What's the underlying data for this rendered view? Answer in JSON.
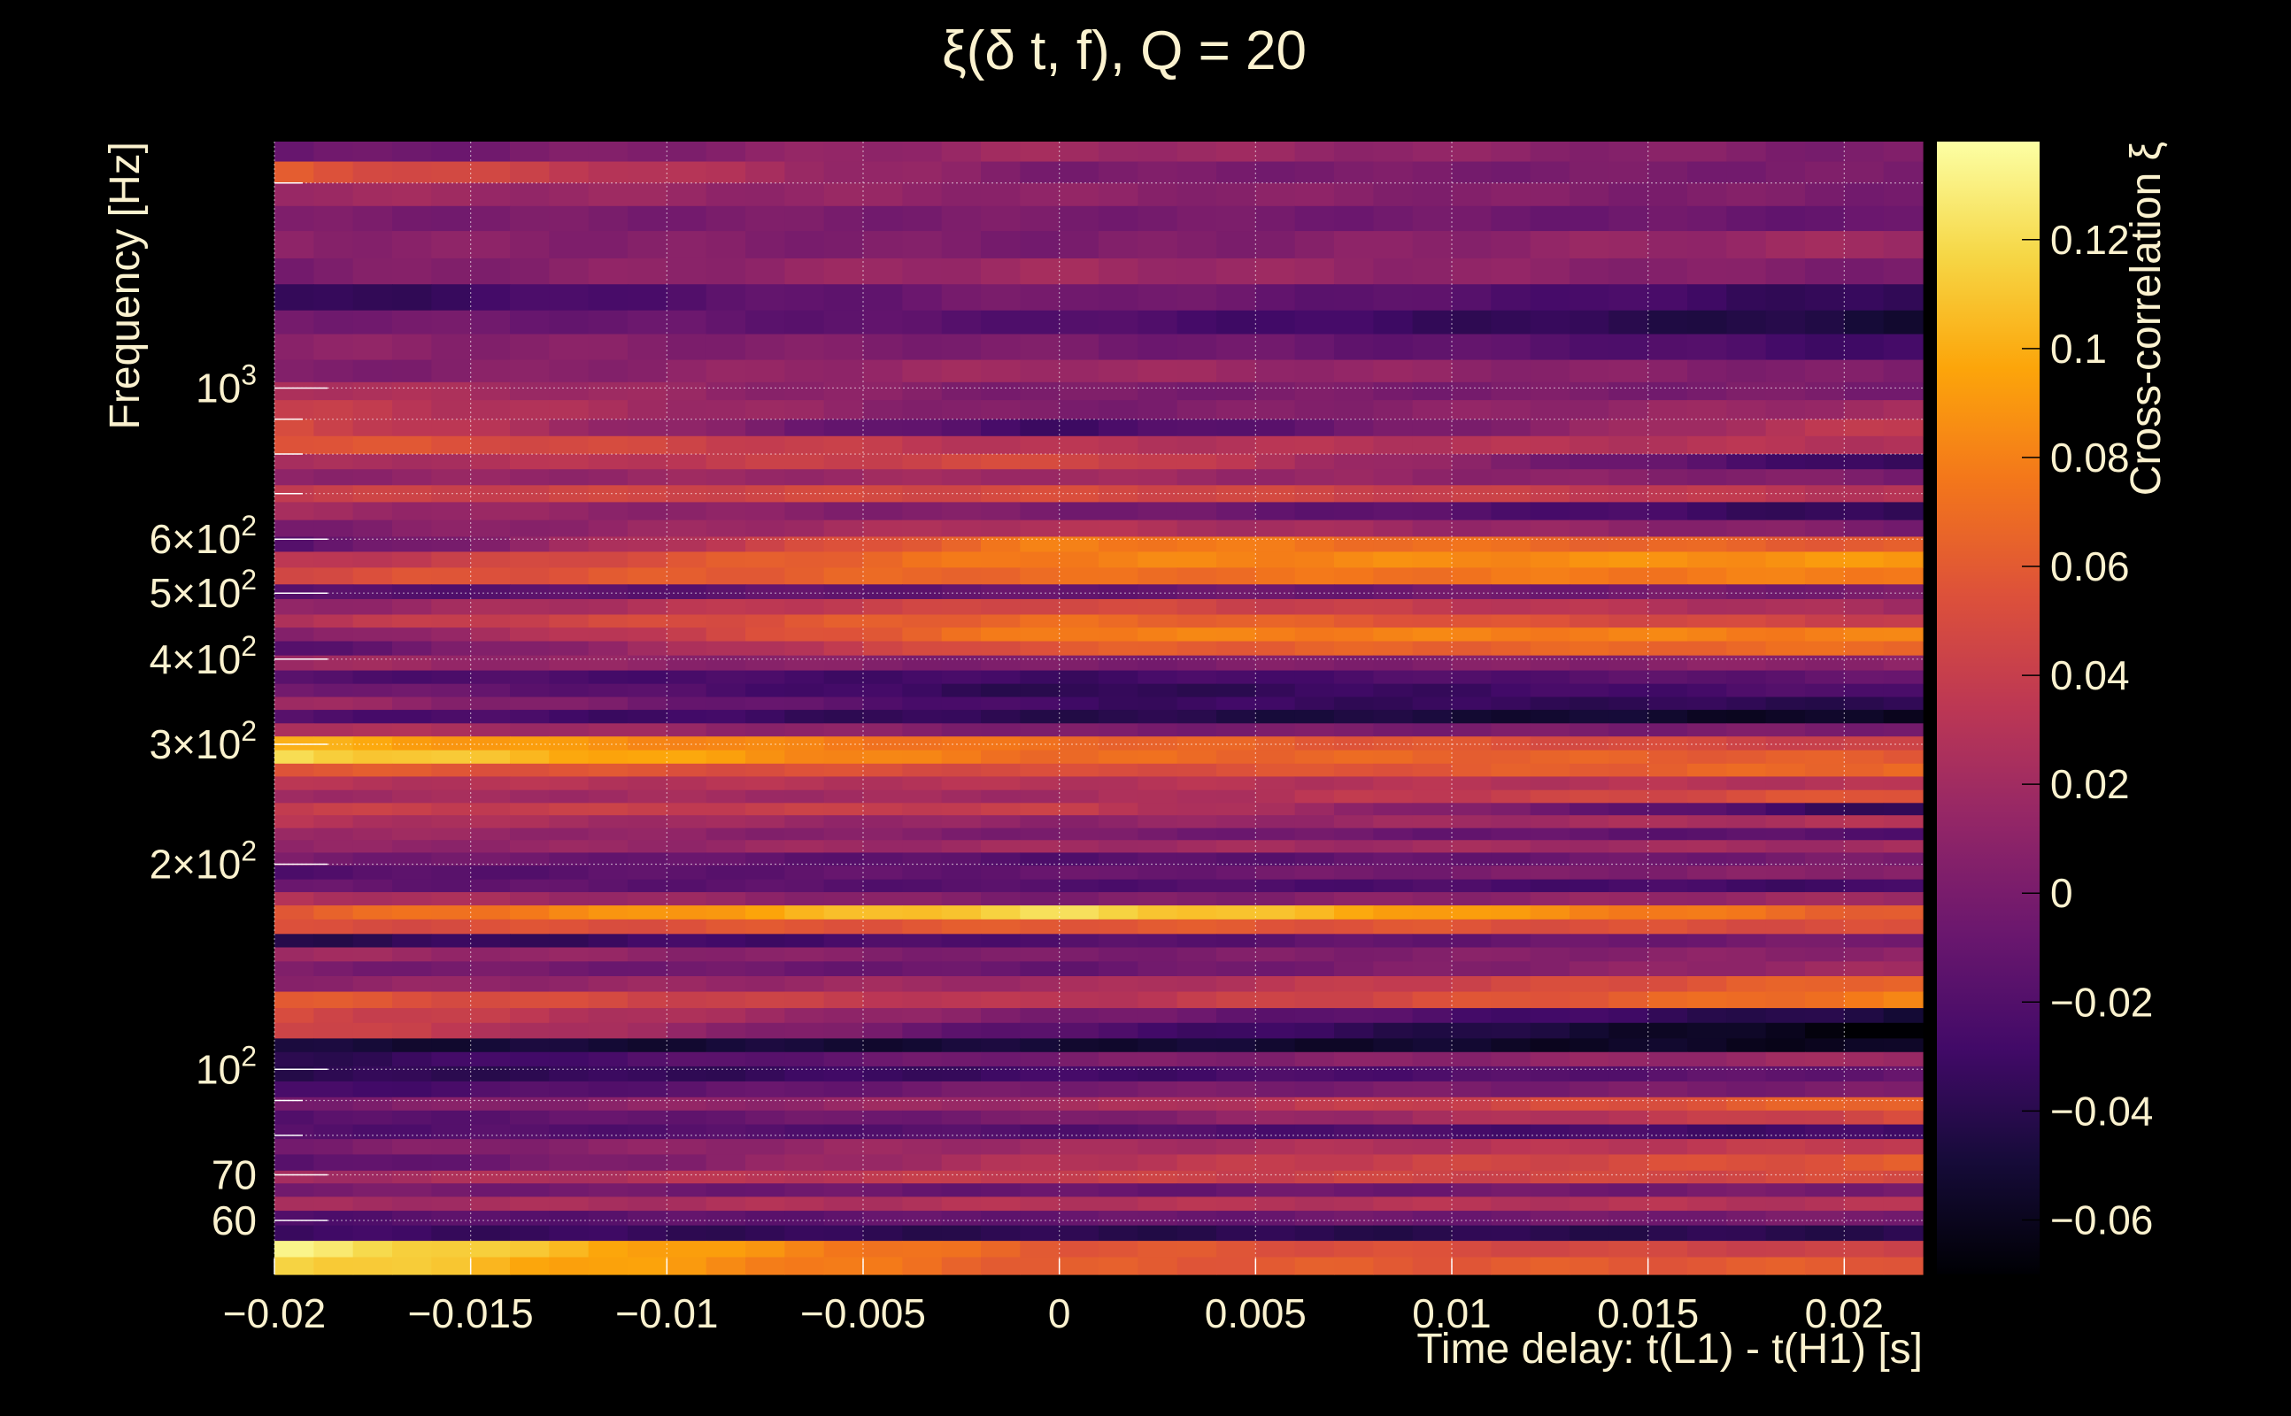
{
  "chart_data": {
    "type": "heatmap",
    "title": "ξ(δ t, f), Q = 20",
    "xlabel": "Time delay: t(L1) - t(H1) [s]",
    "ylabel": "Frequency [Hz]",
    "colorbar_label": "Cross-correlation ξ",
    "x_range": [
      -0.02,
      0.022
    ],
    "y_range": [
      50,
      2300
    ],
    "y_scale": "log",
    "color_range": [
      -0.07,
      0.138
    ],
    "colormap": "inferno",
    "grid": true,
    "x_ticks": [
      {
        "value": -0.02,
        "label": "−0.02"
      },
      {
        "value": -0.015,
        "label": "−0.015"
      },
      {
        "value": -0.01,
        "label": "−0.01"
      },
      {
        "value": -0.005,
        "label": "−0.005"
      },
      {
        "value": 0,
        "label": "0"
      },
      {
        "value": 0.005,
        "label": "0.005"
      },
      {
        "value": 0.01,
        "label": "0.01"
      },
      {
        "value": 0.015,
        "label": "0.015"
      },
      {
        "value": 0.02,
        "label": "0.02"
      }
    ],
    "y_ticks": [
      {
        "value": 60,
        "base": "60",
        "exp": ""
      },
      {
        "value": 70,
        "base": "70",
        "exp": ""
      },
      {
        "value": 100,
        "base": "10",
        "exp": "2"
      },
      {
        "value": 200,
        "base": "2×10",
        "exp": "2"
      },
      {
        "value": 300,
        "base": "3×10",
        "exp": "2"
      },
      {
        "value": 400,
        "base": "4×10",
        "exp": "2"
      },
      {
        "value": 500,
        "base": "5×10",
        "exp": "2"
      },
      {
        "value": 600,
        "base": "6×10",
        "exp": "2"
      },
      {
        "value": 1000,
        "base": "10",
        "exp": "3"
      }
    ],
    "y_minor_ticks": [
      80,
      90,
      700,
      800,
      900,
      2000
    ],
    "colorbar_ticks": [
      {
        "value": 0.12,
        "label": "0.12"
      },
      {
        "value": 0.1,
        "label": "0.1"
      },
      {
        "value": 0.08,
        "label": "0.08"
      },
      {
        "value": 0.06,
        "label": "0.06"
      },
      {
        "value": 0.04,
        "label": "0.04"
      },
      {
        "value": 0.02,
        "label": "0.02"
      },
      {
        "value": 0,
        "label": "0"
      },
      {
        "value": -0.02,
        "label": "−0.02"
      },
      {
        "value": -0.04,
        "label": "−0.04"
      },
      {
        "value": -0.06,
        "label": "−0.06"
      }
    ],
    "band_model": {
      "description": "approximate per-band values at t=-0.02, t=0 and t=0.022",
      "bands": [
        {
          "f_low": 2150,
          "f_high": 2300,
          "values": [
            -0.01,
            0.02,
            0.0
          ]
        },
        {
          "f_low": 2000,
          "f_high": 2150,
          "values": [
            0.06,
            0.0,
            0.0
          ]
        },
        {
          "f_low": 1850,
          "f_high": 2000,
          "values": [
            0.02,
            0.01,
            0.0
          ]
        },
        {
          "f_low": 1700,
          "f_high": 1850,
          "values": [
            0.0,
            0.0,
            -0.01
          ]
        },
        {
          "f_low": 1550,
          "f_high": 1700,
          "values": [
            0.01,
            0.0,
            0.02
          ]
        },
        {
          "f_low": 1420,
          "f_high": 1550,
          "values": [
            0.0,
            0.02,
            0.0
          ]
        },
        {
          "f_low": 1300,
          "f_high": 1420,
          "values": [
            -0.04,
            0.0,
            -0.04
          ]
        },
        {
          "f_low": 1200,
          "f_high": 1300,
          "values": [
            0.0,
            -0.02,
            -0.05
          ]
        },
        {
          "f_low": 1100,
          "f_high": 1200,
          "values": [
            0.01,
            0.0,
            -0.03
          ]
        },
        {
          "f_low": 1020,
          "f_high": 1100,
          "values": [
            0.0,
            0.02,
            0.0
          ]
        },
        {
          "f_low": 960,
          "f_high": 1020,
          "values": [
            0.03,
            0.0,
            0.0
          ]
        },
        {
          "f_low": 900,
          "f_high": 960,
          "values": [
            0.04,
            0.0,
            0.02
          ]
        },
        {
          "f_low": 850,
          "f_high": 900,
          "values": [
            0.05,
            -0.03,
            0.04
          ]
        },
        {
          "f_low": 800,
          "f_high": 850,
          "values": [
            0.06,
            0.03,
            0.03
          ]
        },
        {
          "f_low": 760,
          "f_high": 800,
          "values": [
            0.02,
            0.05,
            -0.04
          ]
        },
        {
          "f_low": 720,
          "f_high": 760,
          "values": [
            0.01,
            0.02,
            0.0
          ]
        },
        {
          "f_low": 680,
          "f_high": 720,
          "values": [
            0.04,
            0.05,
            0.03
          ]
        },
        {
          "f_low": 640,
          "f_high": 680,
          "values": [
            0.02,
            0.0,
            -0.04
          ]
        },
        {
          "f_low": 605,
          "f_high": 640,
          "values": [
            0.0,
            0.03,
            0.0
          ]
        },
        {
          "f_low": 575,
          "f_high": 605,
          "values": [
            -0.02,
            0.08,
            0.06
          ]
        },
        {
          "f_low": 545,
          "f_high": 575,
          "values": [
            0.03,
            0.08,
            0.09
          ]
        },
        {
          "f_low": 515,
          "f_high": 545,
          "values": [
            0.05,
            0.07,
            0.08
          ]
        },
        {
          "f_low": 490,
          "f_high": 515,
          "values": [
            -0.02,
            -0.01,
            0.0
          ]
        },
        {
          "f_low": 465,
          "f_high": 490,
          "values": [
            0.01,
            0.05,
            0.02
          ]
        },
        {
          "f_low": 445,
          "f_high": 465,
          "values": [
            0.03,
            0.07,
            0.04
          ]
        },
        {
          "f_low": 425,
          "f_high": 445,
          "values": [
            0.0,
            0.08,
            0.08
          ]
        },
        {
          "f_low": 405,
          "f_high": 425,
          "values": [
            -0.02,
            0.06,
            0.07
          ]
        },
        {
          "f_low": 385,
          "f_high": 405,
          "values": [
            0.02,
            0.0,
            0.01
          ]
        },
        {
          "f_low": 368,
          "f_high": 385,
          "values": [
            -0.02,
            -0.03,
            -0.01
          ]
        },
        {
          "f_low": 352,
          "f_high": 368,
          "values": [
            0.0,
            -0.04,
            -0.02
          ]
        },
        {
          "f_low": 337,
          "f_high": 352,
          "values": [
            0.02,
            -0.03,
            -0.04
          ]
        },
        {
          "f_low": 322,
          "f_high": 337,
          "values": [
            -0.02,
            -0.04,
            -0.06
          ]
        },
        {
          "f_low": 308,
          "f_high": 322,
          "values": [
            0.03,
            0.0,
            0.0
          ]
        },
        {
          "f_low": 294,
          "f_high": 308,
          "values": [
            0.1,
            0.07,
            0.04
          ]
        },
        {
          "f_low": 281,
          "f_high": 294,
          "values": [
            0.12,
            0.07,
            0.06
          ]
        },
        {
          "f_low": 269,
          "f_high": 281,
          "values": [
            0.06,
            0.05,
            0.07
          ]
        },
        {
          "f_low": 257,
          "f_high": 269,
          "values": [
            0.03,
            0.03,
            0.03
          ]
        },
        {
          "f_low": 246,
          "f_high": 257,
          "values": [
            0.02,
            0.02,
            0.06
          ]
        },
        {
          "f_low": 236,
          "f_high": 246,
          "values": [
            0.04,
            0.04,
            -0.04
          ]
        },
        {
          "f_low": 226,
          "f_high": 236,
          "values": [
            0.03,
            0.01,
            0.03
          ]
        },
        {
          "f_low": 217,
          "f_high": 226,
          "values": [
            0.02,
            0.0,
            -0.02
          ]
        },
        {
          "f_low": 208,
          "f_high": 217,
          "values": [
            0.01,
            0.02,
            0.02
          ]
        },
        {
          "f_low": 199,
          "f_high": 208,
          "values": [
            0.0,
            -0.02,
            0.0
          ]
        },
        {
          "f_low": 190,
          "f_high": 199,
          "values": [
            -0.02,
            -0.01,
            0.01
          ]
        },
        {
          "f_low": 182,
          "f_high": 190,
          "values": [
            -0.01,
            -0.02,
            -0.03
          ]
        },
        {
          "f_low": 174,
          "f_high": 182,
          "values": [
            0.03,
            0.0,
            0.02
          ]
        },
        {
          "f_low": 166,
          "f_high": 174,
          "values": [
            0.06,
            0.12,
            0.06
          ]
        },
        {
          "f_low": 158,
          "f_high": 166,
          "values": [
            0.05,
            0.06,
            0.05
          ]
        },
        {
          "f_low": 151,
          "f_high": 158,
          "values": [
            -0.04,
            -0.02,
            0.0
          ]
        },
        {
          "f_low": 144,
          "f_high": 151,
          "values": [
            0.02,
            0.0,
            0.01
          ]
        },
        {
          "f_low": 137,
          "f_high": 144,
          "values": [
            0.0,
            -0.01,
            0.02
          ]
        },
        {
          "f_low": 130,
          "f_high": 137,
          "values": [
            0.01,
            0.02,
            0.07
          ]
        },
        {
          "f_low": 123,
          "f_high": 130,
          "values": [
            0.06,
            0.03,
            0.08
          ]
        },
        {
          "f_low": 117,
          "f_high": 123,
          "values": [
            0.05,
            0.0,
            -0.05
          ]
        },
        {
          "f_low": 111,
          "f_high": 117,
          "values": [
            0.05,
            -0.02,
            -0.07
          ]
        },
        {
          "f_low": 106,
          "f_high": 111,
          "values": [
            -0.05,
            -0.05,
            -0.06
          ]
        },
        {
          "f_low": 101,
          "f_high": 106,
          "values": [
            -0.04,
            0.0,
            0.02
          ]
        },
        {
          "f_low": 96,
          "f_high": 101,
          "values": [
            -0.04,
            -0.03,
            -0.01
          ]
        },
        {
          "f_low": 91,
          "f_high": 96,
          "values": [
            -0.03,
            0.0,
            0.0
          ]
        },
        {
          "f_low": 87,
          "f_high": 91,
          "values": [
            0.0,
            0.02,
            0.07
          ]
        },
        {
          "f_low": 83,
          "f_high": 87,
          "values": [
            -0.02,
            0.0,
            0.05
          ]
        },
        {
          "f_low": 79,
          "f_high": 83,
          "values": [
            -0.02,
            -0.02,
            -0.03
          ]
        },
        {
          "f_low": 75,
          "f_high": 79,
          "values": [
            0.0,
            0.02,
            0.04
          ]
        },
        {
          "f_low": 71,
          "f_high": 75,
          "values": [
            -0.02,
            0.03,
            0.06
          ]
        },
        {
          "f_low": 68,
          "f_high": 71,
          "values": [
            0.02,
            0.04,
            0.05
          ]
        },
        {
          "f_low": 65,
          "f_high": 68,
          "values": [
            0.0,
            -0.01,
            0.0
          ]
        },
        {
          "f_low": 62,
          "f_high": 65,
          "values": [
            0.02,
            0.03,
            0.03
          ]
        },
        {
          "f_low": 59,
          "f_high": 62,
          "values": [
            -0.02,
            -0.01,
            0.0
          ]
        },
        {
          "f_low": 56,
          "f_high": 59,
          "values": [
            -0.03,
            -0.04,
            -0.04
          ]
        },
        {
          "f_low": 53,
          "f_high": 56,
          "values": [
            0.13,
            0.06,
            0.04
          ]
        },
        {
          "f_low": 50,
          "f_high": 53,
          "values": [
            0.12,
            0.06,
            0.06
          ]
        }
      ]
    }
  }
}
